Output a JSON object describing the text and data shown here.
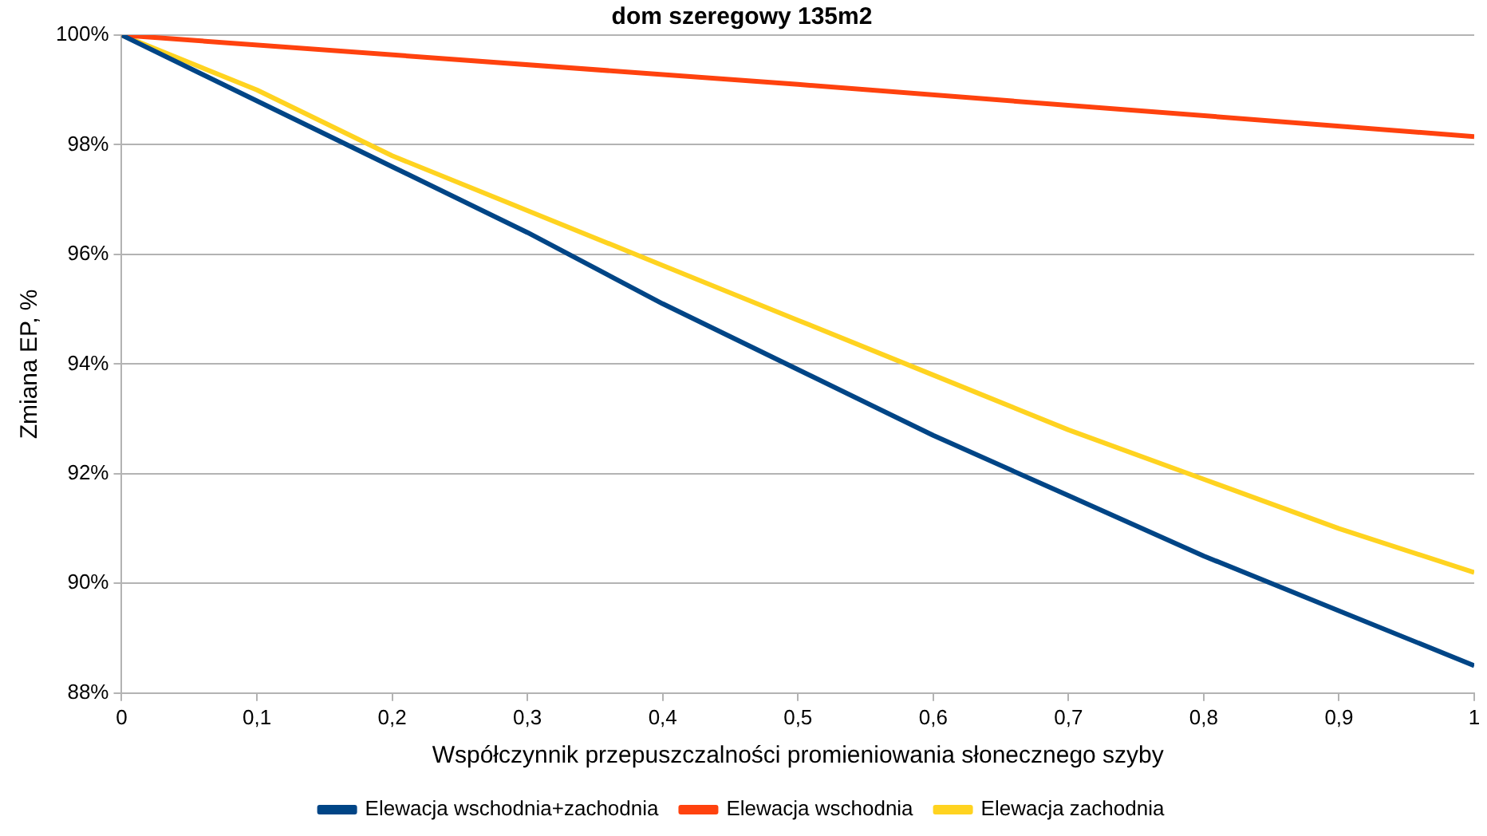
{
  "chart_data": {
    "type": "line",
    "title": "dom szeregowy 135m2",
    "xlabel": "Współczynnik przepuszczalności promieniowania słonecznego szyby",
    "ylabel": "Zmiana EP, %",
    "xlim": [
      0,
      1
    ],
    "xticks": [
      0,
      {
        "value": 0.1,
        "label": "0,1"
      },
      {
        "value": 0.2,
        "label": "0,2"
      },
      {
        "value": 0.3,
        "label": "0,3"
      },
      {
        "value": 0.4,
        "label": "0,4"
      },
      {
        "value": 0.5,
        "label": "0,5"
      },
      {
        "value": 0.6,
        "label": "0,6"
      },
      {
        "value": 0.7,
        "label": "0,7"
      },
      {
        "value": 0.8,
        "label": "0,8"
      },
      {
        "value": 0.9,
        "label": "0,9"
      },
      1
    ],
    "ylim": [
      88,
      100
    ],
    "yticks": [
      {
        "value": 88,
        "label": "88%"
      },
      {
        "value": 90,
        "label": "90%"
      },
      {
        "value": 92,
        "label": "92%"
      },
      {
        "value": 94,
        "label": "94%"
      },
      {
        "value": 96,
        "label": "96%"
      },
      {
        "value": 98,
        "label": "98%"
      },
      {
        "value": 100,
        "label": "100%"
      }
    ],
    "x": [
      0,
      0.1,
      0.2,
      0.3,
      0.4,
      0.5,
      0.6,
      0.7,
      0.8,
      0.9,
      1
    ],
    "series": [
      {
        "name": "Elewacja wschodnia+zachodnia",
        "color": "#004586",
        "values": [
          100,
          98.8,
          97.6,
          96.4,
          95.1,
          93.9,
          92.7,
          91.6,
          90.5,
          89.5,
          88.5
        ]
      },
      {
        "name": "Elewacja wschodnia",
        "color": "#ff420e",
        "x": [
          0,
          0.5,
          1
        ],
        "values": [
          100,
          99.1,
          98.15
        ]
      },
      {
        "name": "Elewacja zachodnia",
        "color": "#ffd320",
        "values": [
          100,
          99.0,
          97.8,
          96.8,
          95.8,
          94.8,
          93.8,
          92.8,
          91.9,
          91.0,
          90.2
        ]
      }
    ],
    "grid": "y",
    "legend": "bottom",
    "marker": "none",
    "line_style": "solid"
  }
}
